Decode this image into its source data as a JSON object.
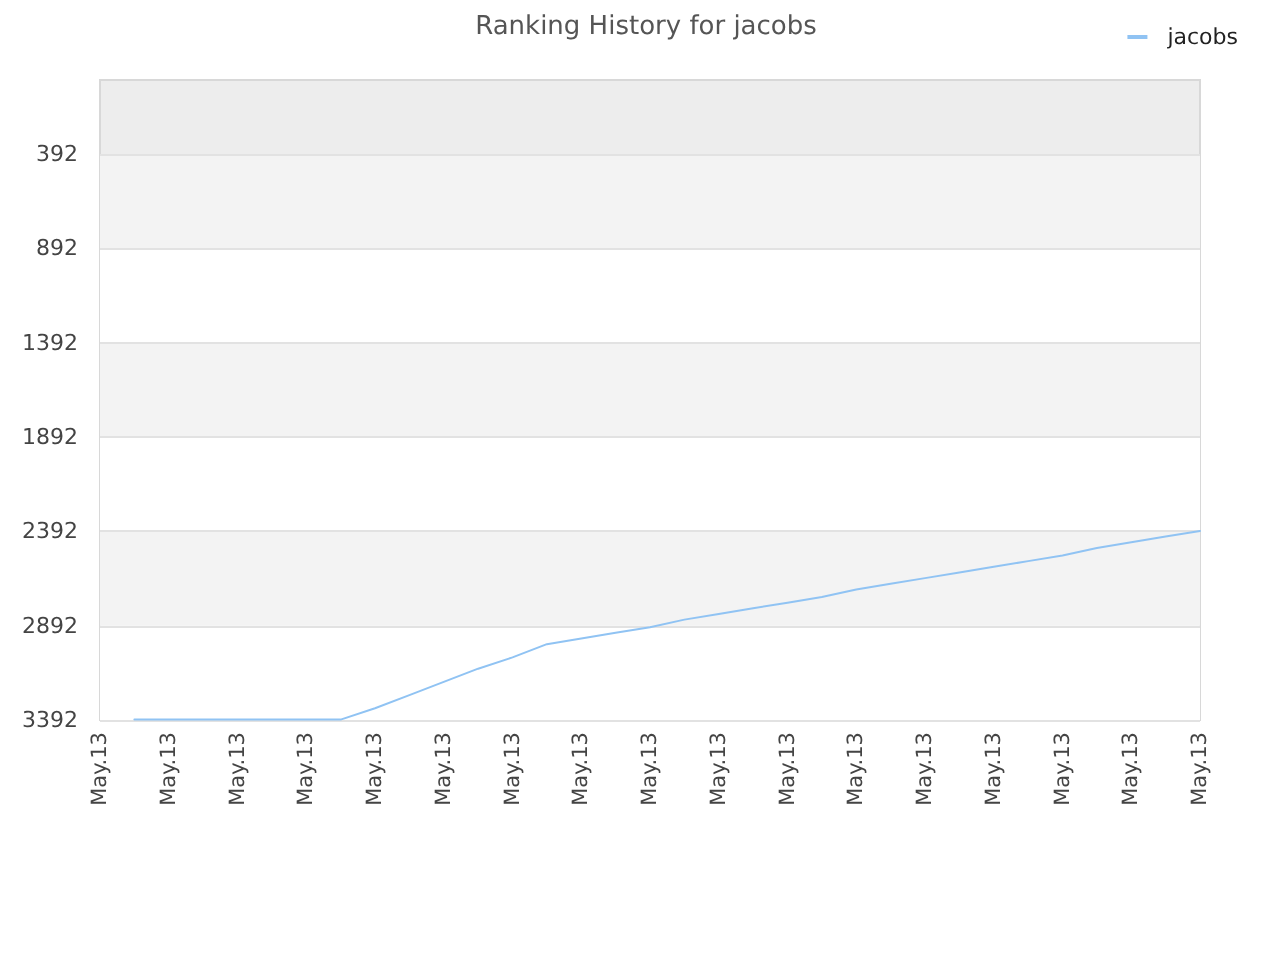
{
  "chart_data": {
    "type": "line",
    "title": "Ranking History for jacobs",
    "categories": [
      "May.13",
      null,
      "May.13",
      null,
      "May.13",
      null,
      "May.13",
      null,
      "May.13",
      null,
      "May.13",
      null,
      "May.13",
      null,
      "May.13",
      null,
      "May.13",
      null,
      "May.13",
      null,
      "May.13",
      null,
      "May.13",
      null,
      "May.13",
      null,
      "May.13",
      null,
      "May.13",
      null,
      "May.13",
      null,
      "May.13"
    ],
    "series": [
      {
        "name": "jacobs",
        "color": "#90c3f3",
        "values": [
          null,
          3390,
          3390,
          3390,
          3390,
          3390,
          3390,
          3390,
          3330,
          3260,
          3190,
          3120,
          3060,
          2990,
          2960,
          2930,
          2900,
          2860,
          2830,
          2800,
          2770,
          2740,
          2700,
          2670,
          2640,
          2610,
          2580,
          2550,
          2520,
          2480,
          2450,
          2420,
          2390
        ]
      }
    ],
    "ylim": [
      3392,
      0
    ],
    "yticks": [
      392,
      892,
      1392,
      1892,
      2392,
      2892,
      3392
    ],
    "grid": "y",
    "legend": "top right",
    "marker": "none"
  }
}
